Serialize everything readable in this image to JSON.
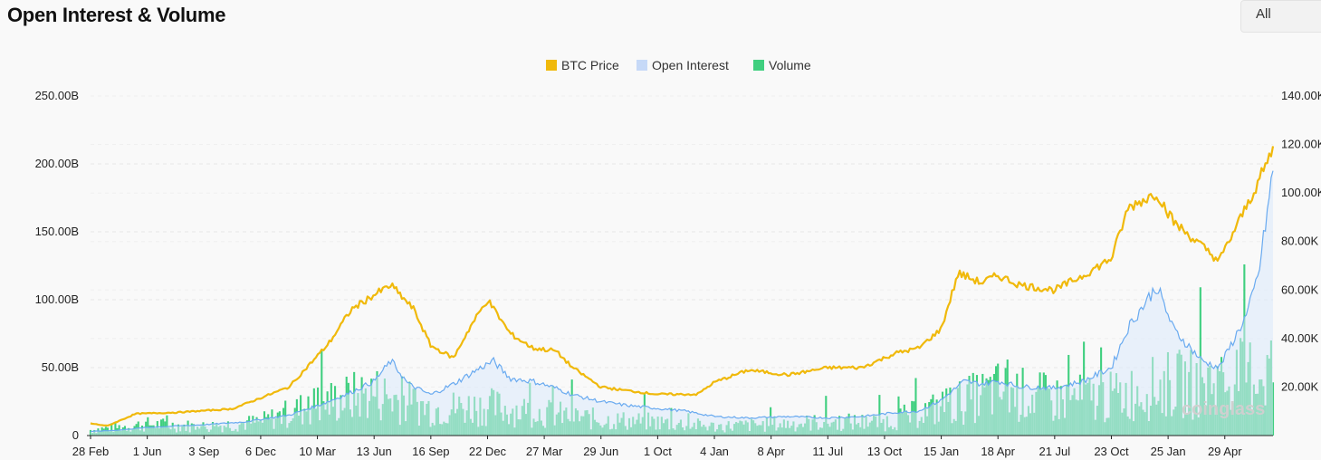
{
  "header": {
    "title": "Open Interest & Volume",
    "range_select": "All"
  },
  "watermark": "coinglass",
  "colors": {
    "btc_price": "#f0b90b",
    "open_interest_line": "#69aaf0",
    "open_interest_fill": "#dbe9fb",
    "volume": "#3fcf7f",
    "grid": "#e6e6e6"
  },
  "chart_data": {
    "type": "line",
    "title": "Open Interest & Volume",
    "legend": [
      "BTC Price",
      "Open Interest",
      "Volume"
    ],
    "legend_position": "top-center",
    "grid": true,
    "y_left": {
      "ticks": [
        "0",
        "50.00B",
        "100.00B",
        "150.00B",
        "200.00B",
        "250.00B"
      ],
      "range": [
        0,
        250
      ]
    },
    "y_right": {
      "ticks": [
        "20.00K",
        "40.00K",
        "60.00K",
        "80.00K",
        "100.00K",
        "120.00K",
        "140.00K"
      ],
      "range": [
        0,
        140
      ]
    },
    "x_labels": [
      "28 Feb",
      "1 Jun",
      "3 Sep",
      "6 Dec",
      "10 Mar",
      "13 Jun",
      "16 Sep",
      "22 Dec",
      "27 Mar",
      "29 Jun",
      "1 Oct",
      "4 Jan",
      "8 Apr",
      "11 Jul",
      "13 Oct",
      "15 Jan",
      "18 Apr",
      "21 Jul",
      "23 Oct",
      "25 Jan",
      "29 Apr"
    ],
    "series": [
      {
        "name": "BTC Price",
        "axis": "right",
        "unit": "K USD",
        "x": [
          0,
          0.3,
          0.8,
          1.5,
          2.5,
          3.5,
          4.2,
          4.6,
          5.0,
          5.3,
          5.7,
          6.0,
          6.4,
          6.7,
          7.0,
          7.4,
          7.8,
          8.2,
          8.5,
          9.0,
          9.3,
          10.0,
          10.7,
          11.0,
          11.6,
          12.3,
          13.0,
          13.6,
          14.2,
          14.6,
          15.0,
          15.3,
          15.7,
          16.0,
          16.4,
          17.0,
          17.5,
          18.0,
          18.3,
          18.8,
          19.1,
          19.6,
          19.9,
          20.5,
          20.85
        ],
        "y": [
          5,
          4,
          9,
          9.5,
          11,
          20,
          38,
          52,
          58,
          62,
          52,
          37,
          32,
          45,
          56,
          42,
          36,
          35,
          28,
          20,
          19,
          17,
          17,
          22,
          27,
          25,
          28,
          28,
          34,
          36,
          44,
          67,
          63,
          66,
          62,
          60,
          66,
          73,
          94,
          100,
          88,
          78,
          72,
          100,
          118
        ]
      },
      {
        "name": "Open Interest",
        "axis": "left",
        "unit": "B USD",
        "x": [
          0,
          0.5,
          1.0,
          2.0,
          2.7,
          3.5,
          4.0,
          4.5,
          5.0,
          5.3,
          5.6,
          6.0,
          6.4,
          6.8,
          7.1,
          7.4,
          7.8,
          8.2,
          8.5,
          9.0,
          9.5,
          10.0,
          10.5,
          11.0,
          11.6,
          12.3,
          13.0,
          13.6,
          14.2,
          14.6,
          15.0,
          15.4,
          15.7,
          16.0,
          16.4,
          17.0,
          17.5,
          18.0,
          18.3,
          18.8,
          19.1,
          19.6,
          19.9,
          20.4,
          20.6,
          20.75,
          20.85
        ],
        "y": [
          3,
          4,
          6,
          8,
          10,
          15,
          22,
          30,
          40,
          55,
          38,
          30,
          38,
          48,
          55,
          42,
          40,
          35,
          30,
          25,
          22,
          20,
          18,
          14,
          13,
          14,
          13,
          14,
          17,
          18,
          26,
          40,
          38,
          40,
          36,
          35,
          40,
          50,
          80,
          110,
          78,
          55,
          50,
          90,
          120,
          165,
          195
        ]
      },
      {
        "name": "Volume",
        "axis": "left",
        "unit": "B USD",
        "x": [
          0,
          1,
          2,
          3,
          4,
          5,
          6,
          7,
          8,
          9,
          10,
          11,
          12,
          13,
          14,
          15,
          16,
          17,
          18,
          19,
          20,
          20.85
        ],
        "y": [
          5,
          10,
          8,
          12,
          28,
          38,
          24,
          26,
          20,
          14,
          12,
          8,
          10,
          12,
          12,
          25,
          40,
          32,
          34,
          45,
          48,
          60
        ]
      }
    ]
  }
}
